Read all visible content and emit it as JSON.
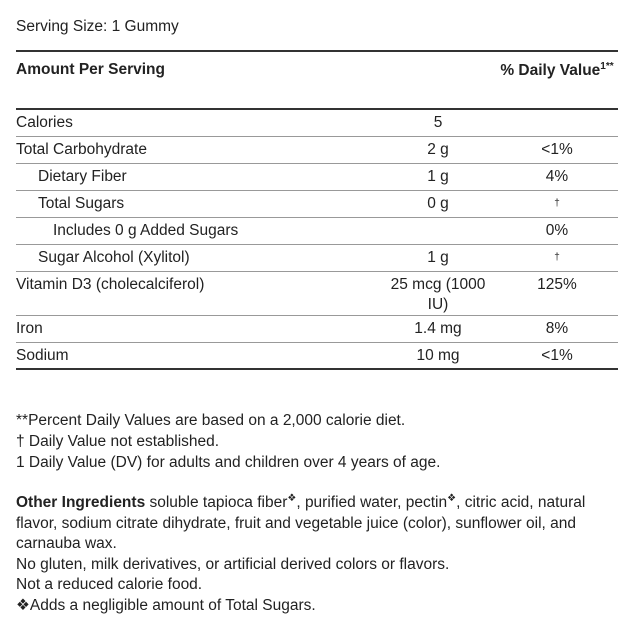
{
  "serving_size": "Serving Size: 1 Gummy",
  "table": {
    "header": {
      "amount": "Amount Per Serving",
      "dv": "% Daily Value",
      "dv_sup": "1**"
    },
    "rows": [
      {
        "name": "Calories",
        "amount": "5"
      },
      {
        "name": "Total Carbohydrate",
        "amount": "2 g",
        "dv": "<1%"
      },
      {
        "name": "Dietary Fiber",
        "amount": "1 g",
        "dv": "4%"
      },
      {
        "name": "Total Sugars",
        "amount": "0 g",
        "dv": "†"
      },
      {
        "name": "Includes 0 g Added Sugars",
        "dv": "0%"
      },
      {
        "name": "Sugar Alcohol (Xylitol)",
        "amount": "1 g",
        "dv": "†"
      },
      {
        "name": "Vitamin D3 (cholecalciferol)",
        "amount": "25 mcg (1000 IU)",
        "dv": "125%"
      },
      {
        "name": "Iron",
        "amount": "1.4 mg",
        "dv": "8%"
      },
      {
        "name": "Sodium",
        "amount": "10 mg",
        "dv": "<1%"
      }
    ]
  },
  "footnotes": [
    "**Percent Daily Values are based on a 2,000 calorie diet.",
    "† Daily Value not established.",
    "1 Daily Value (DV) for adults and children over 4 years of age."
  ],
  "other_ingredients": {
    "label": "Other Ingredients",
    "segments": [
      " soluble tapioca fiber",
      "❖",
      ", purified water, pectin",
      "❖",
      ", citric acid, natural flavor, sodium citrate dihydrate, fruit and vegetable juice (color), sunflower oil, and carnauba wax."
    ]
  },
  "notes": [
    "No gluten, milk derivatives, or artificial derived colors or flavors.",
    "Not a reduced calorie food.",
    "❖Adds a negligible amount of Total Sugars."
  ]
}
